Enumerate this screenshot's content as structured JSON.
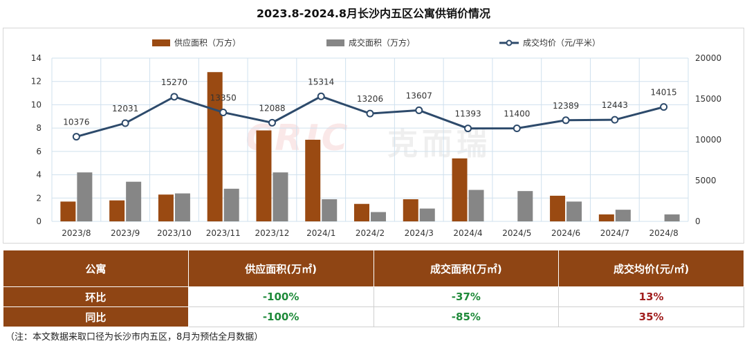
{
  "title": "2023.8-2024.8月长沙内五区公寓供销价情况",
  "legend": {
    "supply": "供应面积（万方）",
    "deal": "成交面积（万方）",
    "price": "成交均价（元/平米）"
  },
  "colors": {
    "supply": "#9a4a12",
    "deal": "#868686",
    "price": "#2d4a6b",
    "header": "#8f4514"
  },
  "watermark": {
    "logo": "CRIC",
    "text": "克而瑞"
  },
  "chart_data": {
    "type": "bar",
    "categories": [
      "2023/8",
      "2023/9",
      "2023/10",
      "2023/11",
      "2023/12",
      "2024/1",
      "2024/2",
      "2024/3",
      "2024/4",
      "2024/5",
      "2024/6",
      "2024/7",
      "2024/8"
    ],
    "series": [
      {
        "name": "供应面积（万方）",
        "type": "bar",
        "axis": "left",
        "values": [
          1.7,
          1.8,
          2.3,
          12.8,
          7.8,
          7.0,
          1.5,
          1.9,
          5.4,
          0,
          2.2,
          0.6,
          0
        ]
      },
      {
        "name": "成交面积（万方）",
        "type": "bar",
        "axis": "left",
        "values": [
          4.2,
          3.4,
          2.4,
          2.8,
          4.2,
          1.9,
          0.8,
          1.1,
          2.7,
          2.6,
          1.7,
          1.0,
          0.6
        ]
      },
      {
        "name": "成交均价（元/平米）",
        "type": "line",
        "axis": "right",
        "values": [
          10376,
          12031,
          15270,
          13350,
          12088,
          15314,
          13206,
          13607,
          11393,
          11400,
          12389,
          12443,
          14015
        ]
      }
    ],
    "y_left": {
      "min": 0,
      "max": 14,
      "ticks": [
        0,
        2,
        4,
        6,
        8,
        10,
        12,
        14
      ]
    },
    "y_right": {
      "min": 0,
      "max": 20000,
      "ticks": [
        0,
        5000,
        10000,
        15000,
        20000
      ]
    },
    "grid": true,
    "legend_position": "top"
  },
  "table": {
    "headers": [
      "公寓",
      "供应面积(万㎡)",
      "成交面积(万㎡)",
      "成交均价(元/㎡)"
    ],
    "rows": [
      {
        "label": "环比",
        "supply": "-100%",
        "deal": "-37%",
        "price": "13%"
      },
      {
        "label": "同比",
        "supply": "-100%",
        "deal": "-85%",
        "price": "35%"
      }
    ]
  },
  "note": "（注：本文数据来取口径为长沙市内五区，8月为预估全月数据）"
}
